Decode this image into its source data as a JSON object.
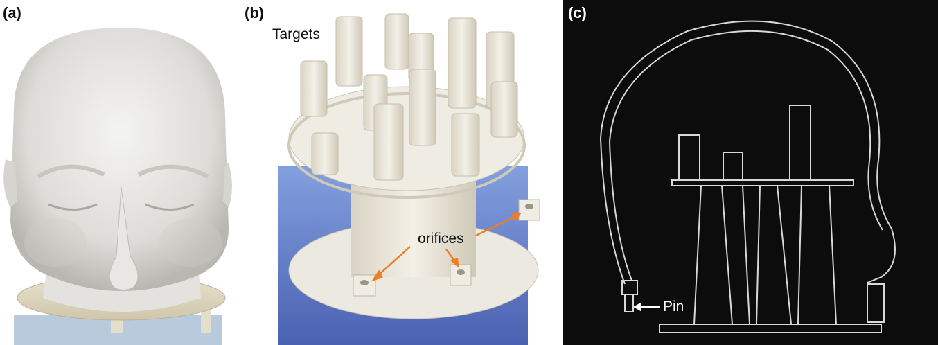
{
  "panels": {
    "a": {
      "label": "(a)"
    },
    "b": {
      "label": "(b)",
      "targets_label": "Targets",
      "orifices_label": "orifices"
    },
    "c": {
      "label": "(c)",
      "pin_label": "Pin"
    }
  },
  "colors": {
    "arrow_orange": "#ef7d21",
    "phantom_white": "#ece9e1",
    "acrylic_blue": "#3b5bb4",
    "ct_background": "#0c0c0c",
    "ct_outline": "#d8d8d8"
  }
}
